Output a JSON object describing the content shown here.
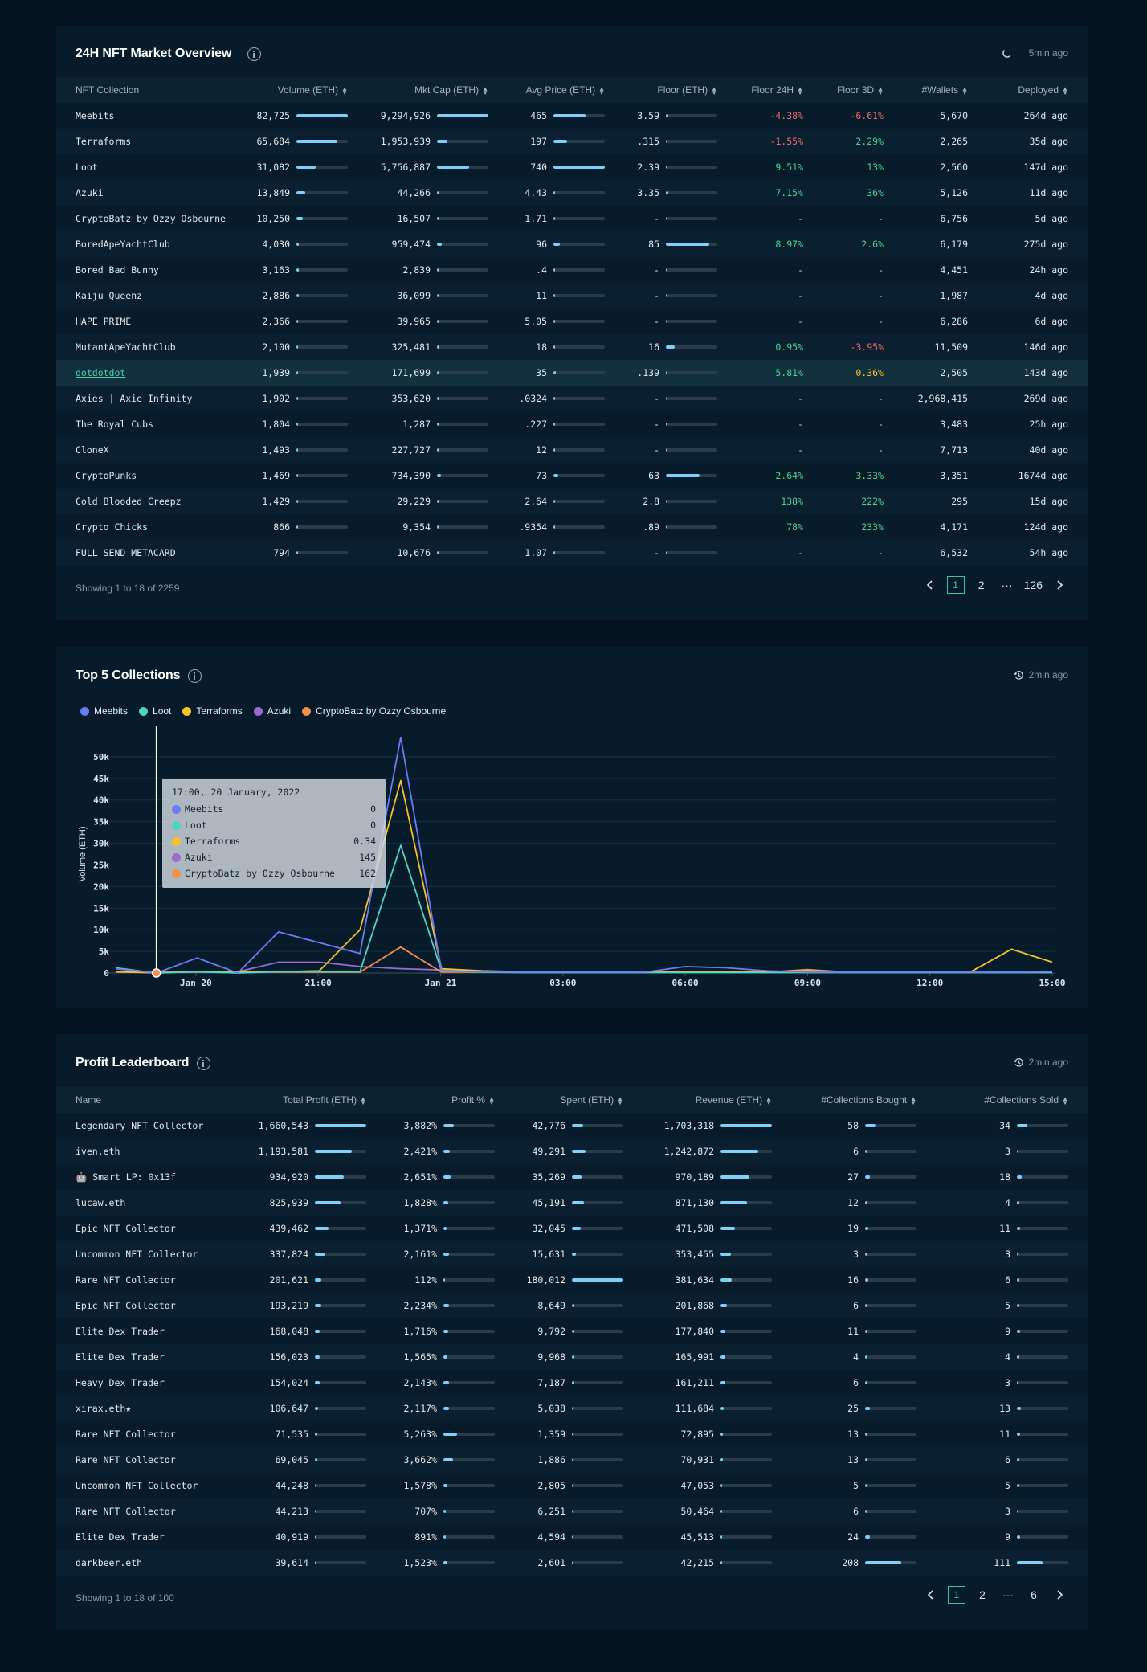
{
  "market": {
    "title": "24H NFT Market Overview",
    "updated": "5min ago",
    "columns": [
      "NFT Collection",
      "Volume (ETH)",
      "Mkt Cap (ETH)",
      "Avg Price (ETH)",
      "Floor (ETH)",
      "Floor 24H",
      "Floor 3D",
      "#Wallets",
      "Deployed"
    ],
    "rows": [
      {
        "name": "Meebits",
        "vol": "82,725",
        "volF": 1.0,
        "cap": "9,294,926",
        "capF": 1.0,
        "avg": "465",
        "avgF": 0.63,
        "floor": "3.59",
        "floorF": 0.04,
        "f24": "-4.38%",
        "f24c": "neg",
        "f3": "-6.61%",
        "f3c": "neg",
        "wallets": "5,670",
        "deployed": "264d ago"
      },
      {
        "name": "Terraforms",
        "vol": "65,684",
        "volF": 0.8,
        "cap": "1,953,939",
        "capF": 0.21,
        "avg": "197",
        "avgF": 0.27,
        "floor": ".315",
        "floorF": 0.02,
        "f24": "-1.55%",
        "f24c": "neg",
        "f3": "2.29%",
        "f3c": "pos",
        "wallets": "2,265",
        "deployed": "35d ago"
      },
      {
        "name": "Loot",
        "vol": "31,082",
        "volF": 0.38,
        "cap": "5,756,887",
        "capF": 0.62,
        "avg": "740",
        "avgF": 1.0,
        "floor": "2.39",
        "floorF": 0.03,
        "f24": "9.51%",
        "f24c": "pos",
        "f3": "13%",
        "f3c": "pos",
        "wallets": "2,560",
        "deployed": "147d ago"
      },
      {
        "name": "Azuki",
        "vol": "13,849",
        "volF": 0.17,
        "cap": "44,266",
        "capF": 0.02,
        "avg": "4.43",
        "avgF": 0.02,
        "floor": "3.35",
        "floorF": 0.04,
        "f24": "7.15%",
        "f24c": "pos",
        "f3": "36%",
        "f3c": "pos",
        "wallets": "5,126",
        "deployed": "11d ago"
      },
      {
        "name": "CryptoBatz by Ozzy Osbourne",
        "vol": "10,250",
        "volF": 0.12,
        "cap": "16,507",
        "capF": 0.02,
        "avg": "1.71",
        "avgF": 0.02,
        "floor": "-",
        "floorF": 0,
        "f24": "-",
        "f24c": "dash",
        "f3": "-",
        "f3c": "dash",
        "wallets": "6,756",
        "deployed": "5d ago"
      },
      {
        "name": "BoredApeYachtClub",
        "vol": "4,030",
        "volF": 0.05,
        "cap": "959,474",
        "capF": 0.1,
        "avg": "96",
        "avgF": 0.13,
        "floor": "85",
        "floorF": 0.85,
        "f24": "8.97%",
        "f24c": "pos",
        "f3": "2.6%",
        "f3c": "pos",
        "wallets": "6,179",
        "deployed": "275d ago"
      },
      {
        "name": "Bored Bad Bunny",
        "vol": "3,163",
        "volF": 0.04,
        "cap": "2,839",
        "capF": 0.02,
        "avg": ".4",
        "avgF": 0.02,
        "floor": "-",
        "floorF": 0,
        "f24": "-",
        "f24c": "dash",
        "f3": "-",
        "f3c": "dash",
        "wallets": "4,451",
        "deployed": "24h ago"
      },
      {
        "name": "Kaiju Queenz",
        "vol": "2,886",
        "volF": 0.04,
        "cap": "36,099",
        "capF": 0.02,
        "avg": "11",
        "avgF": 0.02,
        "floor": "-",
        "floorF": 0,
        "f24": "-",
        "f24c": "dash",
        "f3": "-",
        "f3c": "dash",
        "wallets": "1,987",
        "deployed": "4d ago"
      },
      {
        "name": "HAPE PRIME",
        "vol": "2,366",
        "volF": 0.03,
        "cap": "39,965",
        "capF": 0.02,
        "avg": "5.05",
        "avgF": 0.02,
        "floor": "-",
        "floorF": 0,
        "f24": "-",
        "f24c": "dash",
        "f3": "-",
        "f3c": "dash",
        "wallets": "6,286",
        "deployed": "6d ago"
      },
      {
        "name": "MutantApeYachtClub",
        "vol": "2,100",
        "volF": 0.03,
        "cap": "325,481",
        "capF": 0.04,
        "avg": "18",
        "avgF": 0.03,
        "floor": "16",
        "floorF": 0.17,
        "f24": "0.95%",
        "f24c": "pos",
        "f3": "-3.95%",
        "f3c": "neg",
        "wallets": "11,509",
        "deployed": "146d ago"
      },
      {
        "name": "dotdotdot",
        "vol": "1,939",
        "volF": 0.02,
        "cap": "171,699",
        "capF": 0.02,
        "avg": "35",
        "avgF": 0.05,
        "floor": ".139",
        "floorF": 0.02,
        "f24": "5.81%",
        "f24c": "pos",
        "f3": "0.36%",
        "f3c": "warn",
        "wallets": "2,505",
        "deployed": "143d ago",
        "link": true
      },
      {
        "name": "Axies | Axie Infinity",
        "vol": "1,902",
        "volF": 0.02,
        "cap": "353,620",
        "capF": 0.04,
        "avg": ".0324",
        "avgF": 0.02,
        "floor": "-",
        "floorF": 0,
        "f24": "-",
        "f24c": "dash",
        "f3": "-",
        "f3c": "dash",
        "wallets": "2,968,415",
        "deployed": "269d ago"
      },
      {
        "name": "The Royal Cubs",
        "vol": "1,804",
        "volF": 0.02,
        "cap": "1,287",
        "capF": 0.02,
        "avg": ".227",
        "avgF": 0.02,
        "floor": "-",
        "floorF": 0,
        "f24": "-",
        "f24c": "dash",
        "f3": "-",
        "f3c": "dash",
        "wallets": "3,483",
        "deployed": "25h ago"
      },
      {
        "name": "CloneX",
        "vol": "1,493",
        "volF": 0.02,
        "cap": "227,727",
        "capF": 0.02,
        "avg": "12",
        "avgF": 0.02,
        "floor": "-",
        "floorF": 0,
        "f24": "-",
        "f24c": "dash",
        "f3": "-",
        "f3c": "dash",
        "wallets": "7,713",
        "deployed": "40d ago"
      },
      {
        "name": "CryptoPunks",
        "vol": "1,469",
        "volF": 0.02,
        "cap": "734,390",
        "capF": 0.08,
        "avg": "73",
        "avgF": 0.1,
        "floor": "63",
        "floorF": 0.65,
        "f24": "2.64%",
        "f24c": "pos",
        "f3": "3.33%",
        "f3c": "pos",
        "wallets": "3,351",
        "deployed": "1674d ago"
      },
      {
        "name": "Cold Blooded Creepz",
        "vol": "1,429",
        "volF": 0.02,
        "cap": "29,229",
        "capF": 0.02,
        "avg": "2.64",
        "avgF": 0.02,
        "floor": "2.8",
        "floorF": 0.03,
        "f24": "138%",
        "f24c": "pos",
        "f3": "222%",
        "f3c": "pos",
        "wallets": "295",
        "deployed": "15d ago"
      },
      {
        "name": "Crypto Chicks",
        "vol": "866",
        "volF": 0.02,
        "cap": "9,354",
        "capF": 0.02,
        "avg": ".9354",
        "avgF": 0.02,
        "floor": ".89",
        "floorF": 0.02,
        "f24": "78%",
        "f24c": "pos",
        "f3": "233%",
        "f3c": "pos",
        "wallets": "4,171",
        "deployed": "124d ago"
      },
      {
        "name": "FULL SEND METACARD",
        "vol": "794",
        "volF": 0.02,
        "cap": "10,676",
        "capF": 0.02,
        "avg": "1.07",
        "avgF": 0.02,
        "floor": "-",
        "floorF": 0,
        "f24": "-",
        "f24c": "dash",
        "f3": "-",
        "f3c": "dash",
        "wallets": "6,532",
        "deployed": "54h ago"
      }
    ],
    "footer": "Showing 1 to 18 of 2259",
    "pages": [
      "1",
      "2",
      "···",
      "126"
    ]
  },
  "top5": {
    "title": "Top 5 Collections",
    "updated": "2min ago",
    "tooltip": {
      "time": "17:00, 20 January, 2022",
      "rows": [
        {
          "name": "Meebits",
          "value": "0",
          "color": "#6b7cf6"
        },
        {
          "name": "Loot",
          "value": "0",
          "color": "#4fd3c4"
        },
        {
          "name": "Terraforms",
          "value": "0.34",
          "color": "#f5c22a"
        },
        {
          "name": "Azuki",
          "value": "145",
          "color": "#9b6bd0"
        },
        {
          "name": "CryptoBatz by Ozzy Osbourne",
          "value": "162",
          "color": "#f0904a"
        }
      ]
    }
  },
  "chart_data": {
    "type": "line",
    "ylabel": "Volume (ETH)",
    "ylim": [
      0,
      55000
    ],
    "y_ticks": [
      "0",
      "5k",
      "10k",
      "15k",
      "20k",
      "25k",
      "30k",
      "35k",
      "40k",
      "45k",
      "50k"
    ],
    "x_tick_labels": [
      "Jan 20",
      "21:00",
      "Jan 21",
      "03:00",
      "06:00",
      "09:00",
      "12:00",
      "15:00"
    ],
    "x": [
      "16:00",
      "17:00",
      "18:00",
      "19:00",
      "20:00",
      "21:00",
      "22:00",
      "23:00",
      "00:00",
      "01:00",
      "02:00",
      "03:00",
      "04:00",
      "05:00",
      "06:00",
      "07:00",
      "08:00",
      "09:00",
      "10:00",
      "11:00",
      "12:00",
      "13:00",
      "14:00",
      "15:00"
    ],
    "series": [
      {
        "name": "Meebits",
        "color": "#6b7cf6",
        "values": [
          1000,
          0,
          3500,
          0,
          9500,
          7000,
          4500,
          54500,
          500,
          300,
          200,
          200,
          200,
          200,
          1500,
          1200,
          500,
          200,
          200,
          200,
          200,
          200,
          200,
          300
        ]
      },
      {
        "name": "Loot",
        "color": "#4fd3c4",
        "values": [
          1200,
          0,
          300,
          0,
          300,
          300,
          300,
          29500,
          500,
          200,
          100,
          100,
          100,
          100,
          100,
          100,
          100,
          100,
          100,
          100,
          100,
          100,
          100,
          100
        ]
      },
      {
        "name": "Terraforms",
        "color": "#f5c22a",
        "values": [
          300,
          0.34,
          300,
          200,
          300,
          500,
          10000,
          44500,
          1000,
          500,
          300,
          300,
          300,
          300,
          300,
          300,
          300,
          500,
          300,
          300,
          300,
          300,
          5500,
          2500
        ]
      },
      {
        "name": "Azuki",
        "color": "#9b6bd0",
        "values": [
          300,
          145,
          300,
          300,
          2500,
          2500,
          1500,
          1000,
          700,
          400,
          300,
          300,
          300,
          300,
          300,
          300,
          300,
          300,
          300,
          300,
          300,
          300,
          300,
          300
        ]
      },
      {
        "name": "CryptoBatz by Ozzy Osbourne",
        "color": "#f0904a",
        "values": [
          200,
          162,
          200,
          200,
          200,
          200,
          200,
          6000,
          200,
          200,
          200,
          200,
          200,
          200,
          200,
          200,
          200,
          800,
          200,
          200,
          200,
          200,
          200,
          200
        ]
      }
    ]
  },
  "profit": {
    "title": "Profit Leaderboard",
    "updated": "2min ago",
    "columns": [
      "Name",
      "Total Profit (ETH)",
      "Profit %",
      "Spent (ETH)",
      "Revenue (ETH)",
      "#Collections Bought",
      "#Collections Sold"
    ],
    "rows": [
      {
        "name": "Legendary NFT Collector",
        "profit": "1,660,543",
        "pF": 1.0,
        "pct": "3,882%",
        "pctF": 0.2,
        "spent": "42,776",
        "sF": 0.22,
        "rev": "1,703,318",
        "rF": 1.0,
        "bought": "58",
        "bF": 0.2,
        "sold": "34",
        "soF": 0.2
      },
      {
        "name": "iven.eth",
        "profit": "1,193,581",
        "pF": 0.72,
        "pct": "2,421%",
        "pctF": 0.12,
        "spent": "49,291",
        "sF": 0.26,
        "rev": "1,242,872",
        "rF": 0.73,
        "bought": "6",
        "bF": 0.03,
        "sold": "3",
        "soF": 0.03
      },
      {
        "name": "🤖 Smart LP: 0x13f",
        "profit": "934,920",
        "pF": 0.56,
        "pct": "2,651%",
        "pctF": 0.14,
        "spent": "35,269",
        "sF": 0.19,
        "rev": "970,189",
        "rF": 0.57,
        "bought": "27",
        "bF": 0.1,
        "sold": "18",
        "soF": 0.1
      },
      {
        "name": "lucaw.eth",
        "profit": "825,939",
        "pF": 0.5,
        "pct": "1,828%",
        "pctF": 0.09,
        "spent": "45,191",
        "sF": 0.24,
        "rev": "871,130",
        "rF": 0.51,
        "bought": "12",
        "bF": 0.05,
        "sold": "4",
        "soF": 0.04
      },
      {
        "name": "Epic NFT Collector",
        "profit": "439,462",
        "pF": 0.26,
        "pct": "1,371%",
        "pctF": 0.07,
        "spent": "32,045",
        "sF": 0.17,
        "rev": "471,508",
        "rF": 0.28,
        "bought": "19",
        "bF": 0.07,
        "sold": "11",
        "soF": 0.07
      },
      {
        "name": "Uncommon NFT Collector",
        "profit": "337,824",
        "pF": 0.2,
        "pct": "2,161%",
        "pctF": 0.11,
        "spent": "15,631",
        "sF": 0.08,
        "rev": "353,455",
        "rF": 0.21,
        "bought": "3",
        "bF": 0.02,
        "sold": "3",
        "soF": 0.03
      },
      {
        "name": "Rare NFT Collector",
        "profit": "201,621",
        "pF": 0.12,
        "pct": "112%",
        "pctF": 0.02,
        "spent": "180,012",
        "sF": 1.0,
        "rev": "381,634",
        "rF": 0.22,
        "bought": "16",
        "bF": 0.06,
        "sold": "6",
        "soF": 0.05
      },
      {
        "name": "Epic NFT Collector",
        "profit": "193,219",
        "pF": 0.12,
        "pct": "2,234%",
        "pctF": 0.11,
        "spent": "8,649",
        "sF": 0.05,
        "rev": "201,868",
        "rF": 0.12,
        "bought": "6",
        "bF": 0.03,
        "sold": "5",
        "soF": 0.04
      },
      {
        "name": "Elite Dex Trader",
        "profit": "168,048",
        "pF": 0.1,
        "pct": "1,716%",
        "pctF": 0.09,
        "spent": "9,792",
        "sF": 0.05,
        "rev": "177,840",
        "rF": 0.1,
        "bought": "11",
        "bF": 0.05,
        "sold": "9",
        "soF": 0.06
      },
      {
        "name": "Elite Dex Trader",
        "profit": "156,023",
        "pF": 0.09,
        "pct": "1,565%",
        "pctF": 0.08,
        "spent": "9,968",
        "sF": 0.05,
        "rev": "165,991",
        "rF": 0.1,
        "bought": "4",
        "bF": 0.02,
        "sold": "4",
        "soF": 0.04
      },
      {
        "name": "Heavy Dex Trader",
        "profit": "154,024",
        "pF": 0.09,
        "pct": "2,143%",
        "pctF": 0.11,
        "spent": "7,187",
        "sF": 0.04,
        "rev": "161,211",
        "rF": 0.09,
        "bought": "6",
        "bF": 0.03,
        "sold": "3",
        "soF": 0.03
      },
      {
        "name": "xirax.eth★",
        "profit": "106,647",
        "pF": 0.06,
        "pct": "2,117%",
        "pctF": 0.11,
        "spent": "5,038",
        "sF": 0.03,
        "rev": "111,684",
        "rF": 0.07,
        "bought": "25",
        "bF": 0.09,
        "sold": "13",
        "soF": 0.08
      },
      {
        "name": "Rare NFT Collector",
        "profit": "71,535",
        "pF": 0.04,
        "pct": "5,263%",
        "pctF": 0.27,
        "spent": "1,359",
        "sF": 0.02,
        "rev": "72,895",
        "rF": 0.04,
        "bought": "13",
        "bF": 0.05,
        "sold": "11",
        "soF": 0.07
      },
      {
        "name": "Rare NFT Collector",
        "profit": "69,045",
        "pF": 0.04,
        "pct": "3,662%",
        "pctF": 0.19,
        "spent": "1,886",
        "sF": 0.02,
        "rev": "70,931",
        "rF": 0.04,
        "bought": "13",
        "bF": 0.05,
        "sold": "6",
        "soF": 0.05
      },
      {
        "name": "Uncommon NFT Collector",
        "profit": "44,248",
        "pF": 0.03,
        "pct": "1,578%",
        "pctF": 0.08,
        "spent": "2,805",
        "sF": 0.02,
        "rev": "47,053",
        "rF": 0.03,
        "bought": "5",
        "bF": 0.02,
        "sold": "5",
        "soF": 0.04
      },
      {
        "name": "Rare NFT Collector",
        "profit": "44,213",
        "pF": 0.03,
        "pct": "707%",
        "pctF": 0.04,
        "spent": "6,251",
        "sF": 0.03,
        "rev": "50,464",
        "rF": 0.03,
        "bought": "6",
        "bF": 0.03,
        "sold": "3",
        "soF": 0.03
      },
      {
        "name": "Elite Dex Trader",
        "profit": "40,919",
        "pF": 0.02,
        "pct": "891%",
        "pctF": 0.05,
        "spent": "4,594",
        "sF": 0.03,
        "rev": "45,513",
        "rF": 0.03,
        "bought": "24",
        "bF": 0.09,
        "sold": "9",
        "soF": 0.06
      },
      {
        "name": "darkbeer.eth",
        "profit": "39,614",
        "pF": 0.02,
        "pct": "1,523%",
        "pctF": 0.08,
        "spent": "2,601",
        "sF": 0.02,
        "rev": "42,215",
        "rF": 0.02,
        "bought": "208",
        "bF": 0.7,
        "sold": "111",
        "soF": 0.5
      }
    ],
    "footer": "Showing 1 to 18 of 100",
    "pages": [
      "1",
      "2",
      "···",
      "6"
    ]
  },
  "colors": {
    "accent": "#3fc1b0",
    "bar": "#7fd0f5",
    "positive": "#4fd38a",
    "negative": "#f06a6a",
    "warning": "#f5c22a"
  }
}
